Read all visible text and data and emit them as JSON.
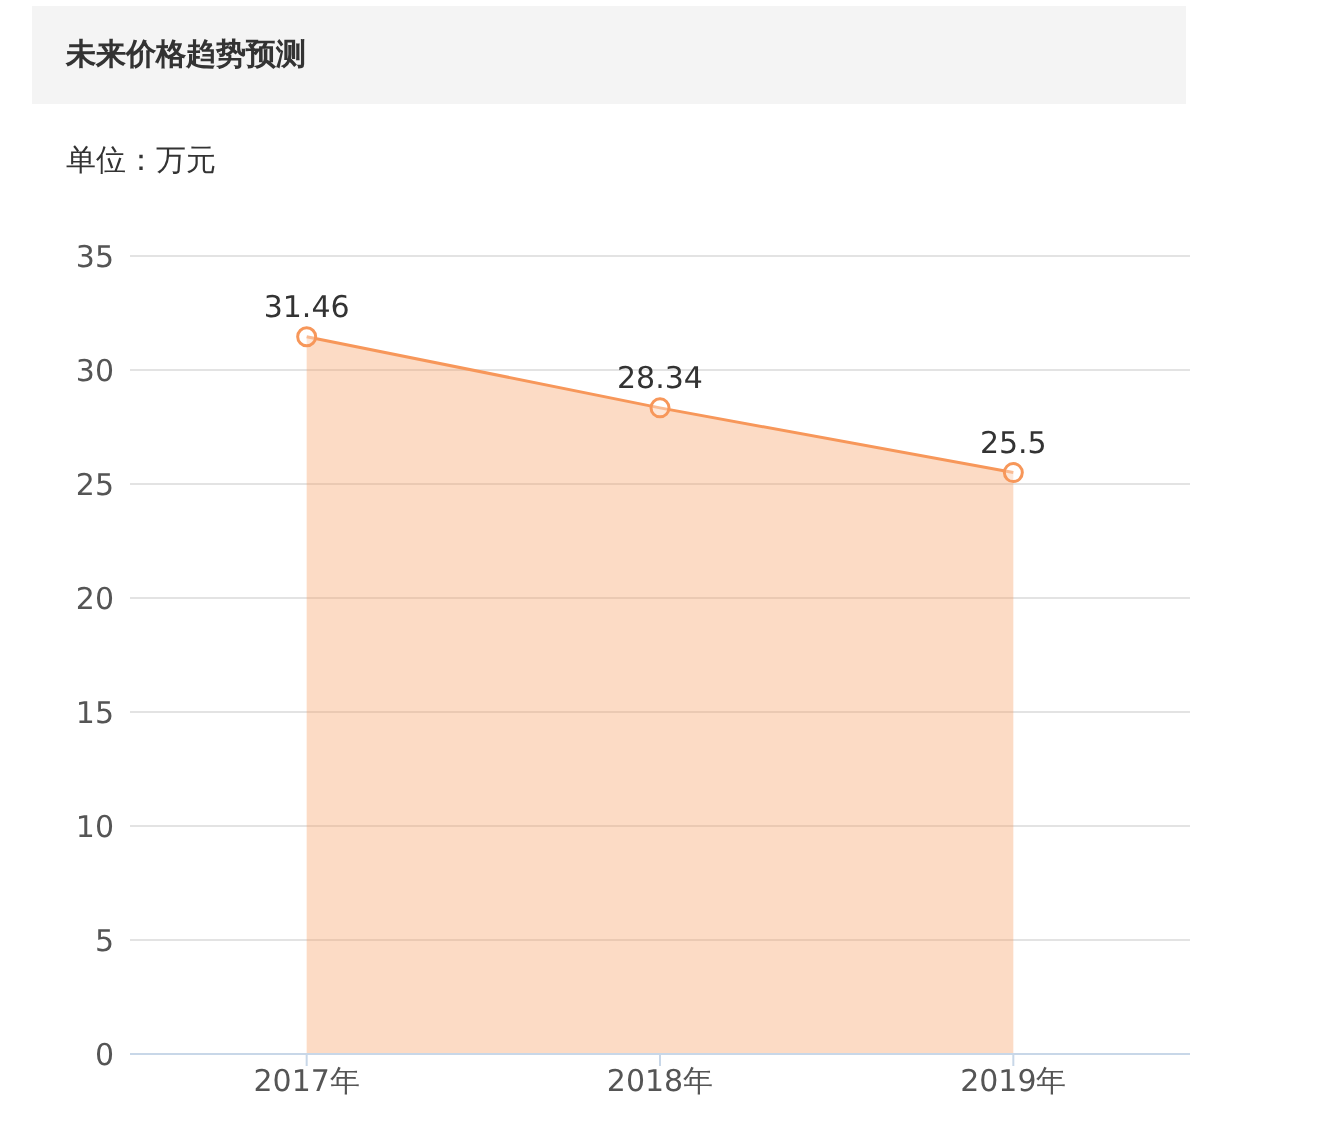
{
  "chart_data": {
    "type": "area",
    "title": "未来价格趋势预测",
    "subtitle": "单位：万元",
    "categories": [
      "2017年",
      "2018年",
      "2019年"
    ],
    "series": [
      {
        "color": "#f7975a",
        "values": [
          31.46,
          28.34,
          25.5
        ]
      }
    ],
    "ylim": [
      0,
      35
    ],
    "yticks": [
      0,
      5,
      10,
      15,
      20,
      25,
      30,
      35
    ],
    "grid": "y",
    "marker": "circle",
    "data_labels": true,
    "legend": false
  }
}
